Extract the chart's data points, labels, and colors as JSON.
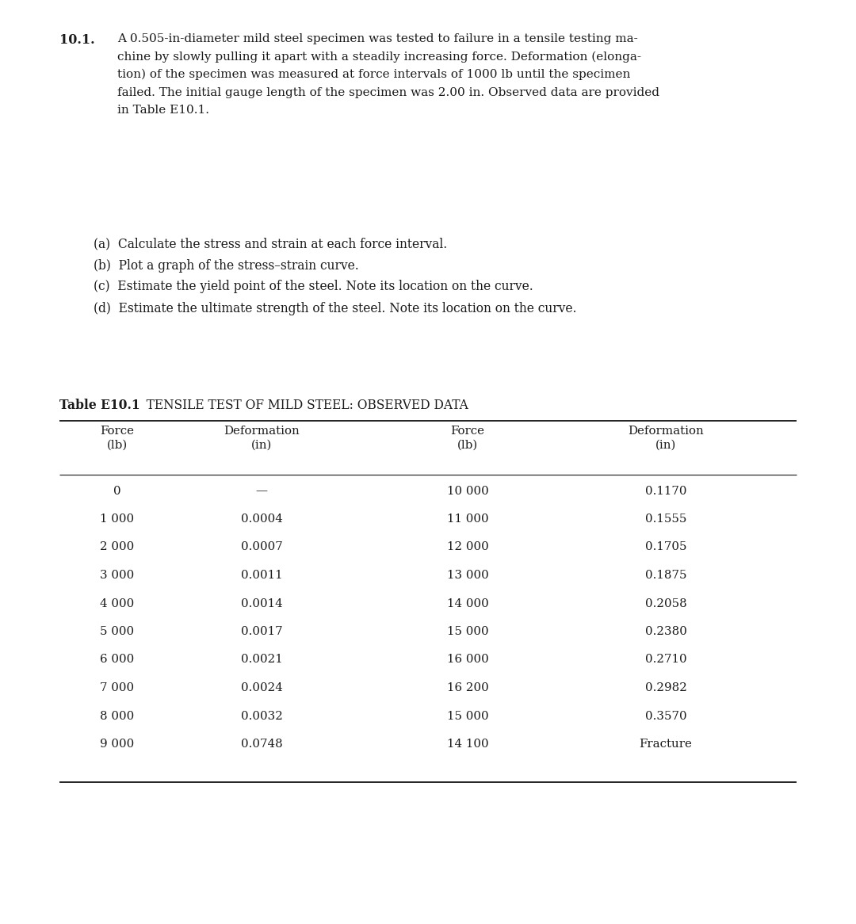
{
  "problem_number": "10.1.",
  "problem_text_lines": [
    "A 0.505-in-diameter mild steel specimen was tested to failure in a tensile testing ma-",
    "chine by slowly pulling it apart with a steadily increasing force. Deformation (elonga-",
    "tion) of the specimen was measured at force intervals of 1000 lb until the specimen",
    "failed. The initial gauge length of the specimen was 2.00 in. Observed data are provided",
    "in Table E10.1."
  ],
  "questions": [
    "(a)  Calculate the stress and strain at each force interval.",
    "(b)  Plot a graph of the stress–strain curve.",
    "(c)  Estimate the yield point of the steel. Note its location on the curve.",
    "(d)  Estimate the ultimate strength of the steel. Note its location on the curve."
  ],
  "table_title_bold": "Table E10.1",
  "table_title_normal": "   TENSILE TEST OF MILD STEEL: OBSERVED DATA",
  "col_headers": [
    "Force\n(lb)",
    "Deformation\n(in)",
    "Force\n(lb)",
    "Deformation\n(in)"
  ],
  "left_force": [
    "0",
    "1 000",
    "2 000",
    "3 000",
    "4 000",
    "5 000",
    "6 000",
    "7 000",
    "8 000",
    "9 000"
  ],
  "left_deform": [
    "—",
    "0.0004",
    "0.0007",
    "0.0011",
    "0.0014",
    "0.0017",
    "0.0021",
    "0.0024",
    "0.0032",
    "0.0748"
  ],
  "right_force": [
    "10 000",
    "11 000",
    "12 000",
    "13 000",
    "14 000",
    "15 000",
    "16 000",
    "16 200",
    "15 000",
    "14 100"
  ],
  "right_deform": [
    "0.1170",
    "0.1555",
    "0.1705",
    "0.1875",
    "0.2058",
    "0.2380",
    "0.2710",
    "0.2982",
    "0.3570",
    "Fracture"
  ],
  "bg_color": "#ffffff",
  "text_color": "#1a1a1a",
  "font_size_body": 11.0,
  "font_size_table": 10.8,
  "font_size_problem_num": 11.5,
  "font_size_table_title": 11.2
}
